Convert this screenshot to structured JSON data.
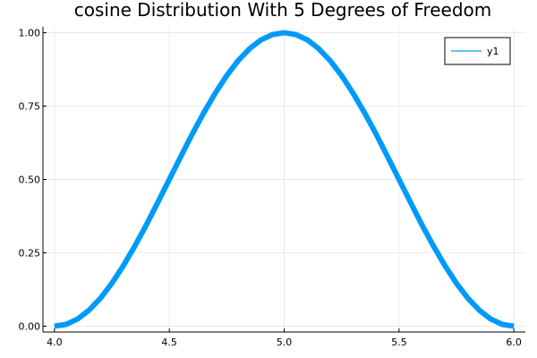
{
  "chart_data": {
    "type": "line",
    "title": "cosine Distribution With 5 Degrees of Freedom",
    "xlabel": "",
    "ylabel": "",
    "xlim": [
      3.95,
      6.05
    ],
    "ylim": [
      -0.02,
      1.02
    ],
    "x_ticks": [
      {
        "value": 4.0,
        "label": "4.0"
      },
      {
        "value": 4.5,
        "label": "4.5"
      },
      {
        "value": 5.0,
        "label": "5.0"
      },
      {
        "value": 5.5,
        "label": "5.5"
      },
      {
        "value": 6.0,
        "label": "6.0"
      }
    ],
    "y_ticks": [
      {
        "value": 0.0,
        "label": "0.00"
      },
      {
        "value": 0.25,
        "label": "0.25"
      },
      {
        "value": 0.5,
        "label": "0.50"
      },
      {
        "value": 0.75,
        "label": "0.75"
      },
      {
        "value": 1.0,
        "label": "1.00"
      }
    ],
    "grid": true,
    "legend_position": "top-right",
    "series": [
      {
        "name": "y1",
        "color": "#009af9",
        "x": [
          4.0,
          4.05,
          4.1,
          4.15,
          4.2,
          4.25,
          4.3,
          4.35,
          4.4,
          4.45,
          4.5,
          4.55,
          4.6,
          4.65,
          4.7,
          4.75,
          4.8,
          4.85,
          4.9,
          4.95,
          5.0,
          5.05,
          5.1,
          5.15,
          5.2,
          5.25,
          5.3,
          5.35,
          5.4,
          5.45,
          5.5,
          5.55,
          5.6,
          5.65,
          5.7,
          5.75,
          5.8,
          5.85,
          5.9,
          5.95,
          6.0
        ],
        "y": [
          0.0,
          0.006,
          0.024,
          0.054,
          0.095,
          0.146,
          0.206,
          0.273,
          0.345,
          0.422,
          0.5,
          0.578,
          0.655,
          0.727,
          0.794,
          0.854,
          0.905,
          0.946,
          0.976,
          0.994,
          1.0,
          0.994,
          0.976,
          0.946,
          0.905,
          0.854,
          0.794,
          0.727,
          0.655,
          0.578,
          0.5,
          0.422,
          0.345,
          0.273,
          0.206,
          0.146,
          0.095,
          0.054,
          0.024,
          0.006,
          0.0
        ]
      }
    ]
  }
}
